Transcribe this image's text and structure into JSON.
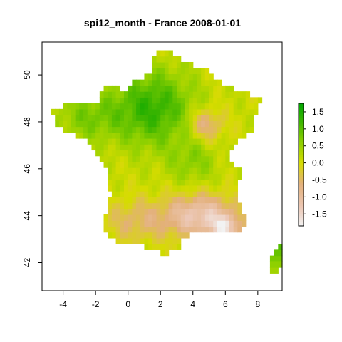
{
  "chart_data": {
    "type": "heatmap",
    "title": "spi12_month - France 2008-01-01",
    "xlabel": "",
    "ylabel": "",
    "xlim": [
      -5.3,
      9.5
    ],
    "ylim": [
      40.8,
      51.4
    ],
    "x_ticks": [
      -4,
      -2,
      0,
      2,
      4,
      6,
      8
    ],
    "x_tick_labels": [
      "-4",
      "-2",
      "0",
      "2",
      "4",
      "6",
      "8"
    ],
    "y_ticks": [
      42,
      44,
      46,
      48,
      50
    ],
    "y_tick_labels": [
      "42",
      "44",
      "46",
      "48",
      "50"
    ],
    "grid": false,
    "legend": {
      "type": "colorbar",
      "placement": "right",
      "range": [
        -1.85,
        1.75
      ],
      "ticks": [
        1.5,
        1.0,
        0.5,
        0.0,
        -0.5,
        -1.0,
        -1.5
      ],
      "tick_labels": [
        "1.5",
        "1.0",
        "0.5",
        "0.0",
        "-0.5",
        "-1.0",
        "-1.5"
      ]
    },
    "color_scale": {
      "name": "terrain-like",
      "stops": [
        {
          "value": -1.85,
          "color": "#f2f2f2"
        },
        {
          "value": -1.3,
          "color": "#ecc8b6"
        },
        {
          "value": -0.6,
          "color": "#e3b07a"
        },
        {
          "value": 0.0,
          "color": "#d6dc00"
        },
        {
          "value": 0.6,
          "color": "#8ed000"
        },
        {
          "value": 1.2,
          "color": "#3eb600"
        },
        {
          "value": 1.75,
          "color": "#00a600"
        }
      ]
    },
    "grid_resolution_deg": 0.25,
    "region": "France (mainland and Corsica)",
    "pattern_description": "SPI-12 values: positive (green) over northern and central France, neutral (yellow) in west and south-west, negative (tan/beige) in the south-east, lowest (near white) near Provence around 43.5N 6E."
  }
}
